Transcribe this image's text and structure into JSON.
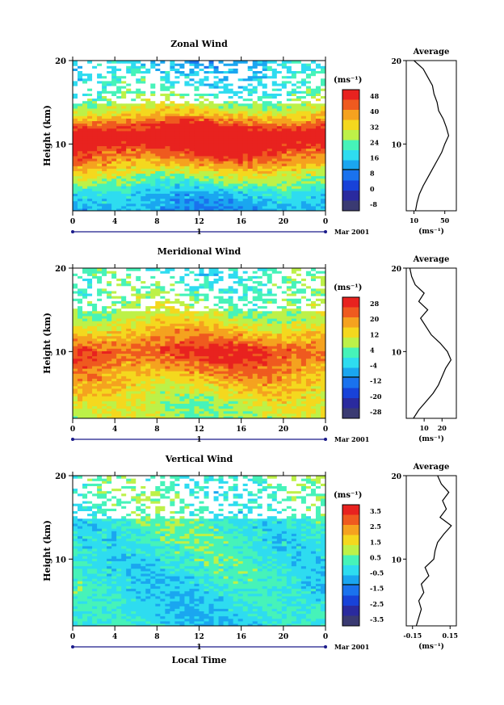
{
  "chart_data": [
    {
      "type": "heatmap",
      "title": "Zonal Wind",
      "ylabel": "Height (km)",
      "ylim": [
        2,
        20
      ],
      "x_ticks": [
        "0",
        "4",
        "8",
        "12",
        "16",
        "20",
        "0"
      ],
      "date_axis": {
        "label": "1",
        "trailer": "Mar 2001"
      },
      "colorbar": {
        "unit": "(ms⁻¹)",
        "ticks": [
          "48",
          "40",
          "32",
          "24",
          "16",
          "8",
          "0",
          "-8"
        ],
        "colors": [
          "#e8221f",
          "#ef5a1f",
          "#f5a21f",
          "#f4d81e",
          "#bdf148",
          "#46f3b9",
          "#2edcf0",
          "#1aa6f0",
          "#1a72ee",
          "#1842d8",
          "#2a2a9e",
          "#3a3a72"
        ]
      },
      "field_profile": [
        {
          "height": 2,
          "value": 12
        },
        {
          "height": 4,
          "value": 16
        },
        {
          "height": 6,
          "value": 26
        },
        {
          "height": 8,
          "value": 38
        },
        {
          "height": 10,
          "value": 48
        },
        {
          "height": 11,
          "value": 52
        },
        {
          "height": 12,
          "value": 45
        },
        {
          "height": 14,
          "value": 30
        },
        {
          "height": 16,
          "value": 22
        },
        {
          "height": 18,
          "value": 18
        },
        {
          "height": 20,
          "value": 15
        }
      ],
      "average": {
        "title": "Average",
        "xlabel": "(ms⁻¹)",
        "x_ticks": [
          "10",
          "50"
        ],
        "xlim": [
          0,
          65
        ],
        "ylim": [
          2,
          20
        ],
        "y_ticks": [
          "10",
          "20"
        ],
        "profile": [
          {
            "height": 2,
            "value": 12
          },
          {
            "height": 3,
            "value": 14
          },
          {
            "height": 4,
            "value": 17
          },
          {
            "height": 5,
            "value": 22
          },
          {
            "height": 6,
            "value": 28
          },
          {
            "height": 7,
            "value": 34
          },
          {
            "height": 8,
            "value": 40
          },
          {
            "height": 9,
            "value": 46
          },
          {
            "height": 10,
            "value": 50
          },
          {
            "height": 11,
            "value": 55
          },
          {
            "height": 12,
            "value": 52
          },
          {
            "height": 13,
            "value": 48
          },
          {
            "height": 14,
            "value": 42
          },
          {
            "height": 15,
            "value": 40
          },
          {
            "height": 16,
            "value": 36
          },
          {
            "height": 17,
            "value": 34
          },
          {
            "height": 18,
            "value": 28
          },
          {
            "height": 19,
            "value": 22
          },
          {
            "height": 20,
            "value": 10
          }
        ]
      }
    },
    {
      "type": "heatmap",
      "title": "Meridional Wind",
      "ylabel": "Height (km)",
      "ylim": [
        2,
        20
      ],
      "x_ticks": [
        "0",
        "4",
        "8",
        "12",
        "16",
        "20",
        "0"
      ],
      "date_axis": {
        "label": "1",
        "trailer": "Mar 2001"
      },
      "colorbar": {
        "unit": "(ms⁻¹)",
        "ticks": [
          "28",
          "20",
          "12",
          "4",
          "-4",
          "-12",
          "-20",
          "-28"
        ],
        "colors": [
          "#e8221f",
          "#ef5a1f",
          "#f5a21f",
          "#f4d81e",
          "#bdf148",
          "#46f3b9",
          "#2edcf0",
          "#1aa6f0",
          "#1a72ee",
          "#1842d8",
          "#2a2a9e",
          "#3a3a72"
        ]
      },
      "field_profile": [
        {
          "height": 2,
          "value": 6
        },
        {
          "height": 4,
          "value": 8
        },
        {
          "height": 6,
          "value": 12
        },
        {
          "height": 8,
          "value": 18
        },
        {
          "height": 10,
          "value": 24
        },
        {
          "height": 12,
          "value": 16
        },
        {
          "height": 14,
          "value": 8
        },
        {
          "height": 16,
          "value": 4
        },
        {
          "height": 18,
          "value": 2
        },
        {
          "height": 20,
          "value": 0
        }
      ],
      "average": {
        "title": "Average",
        "xlabel": "(ms⁻¹)",
        "x_ticks": [
          "10",
          "20"
        ],
        "xlim": [
          0,
          28
        ],
        "ylim": [
          2,
          20
        ],
        "y_ticks": [
          "10",
          "20"
        ],
        "profile": [
          {
            "height": 2,
            "value": 4
          },
          {
            "height": 3,
            "value": 7
          },
          {
            "height": 4,
            "value": 11
          },
          {
            "height": 5,
            "value": 15
          },
          {
            "height": 6,
            "value": 18
          },
          {
            "height": 7,
            "value": 20
          },
          {
            "height": 8,
            "value": 22
          },
          {
            "height": 9,
            "value": 25
          },
          {
            "height": 10,
            "value": 23
          },
          {
            "height": 11,
            "value": 19
          },
          {
            "height": 12,
            "value": 14
          },
          {
            "height": 13,
            "value": 11
          },
          {
            "height": 14,
            "value": 8
          },
          {
            "height": 15,
            "value": 12
          },
          {
            "height": 16,
            "value": 7
          },
          {
            "height": 17,
            "value": 10
          },
          {
            "height": 18,
            "value": 5
          },
          {
            "height": 19,
            "value": 3
          },
          {
            "height": 20,
            "value": 2
          }
        ]
      }
    },
    {
      "type": "heatmap",
      "title": "Vertical Wind",
      "ylabel": "Height (km)",
      "xlabel": "Local Time",
      "ylim": [
        2,
        20
      ],
      "x_ticks": [
        "0",
        "4",
        "8",
        "12",
        "16",
        "20",
        "0"
      ],
      "date_axis": {
        "label": "1",
        "trailer": "Mar 2001"
      },
      "colorbar": {
        "unit": "(ms⁻¹)",
        "ticks": [
          "3.5",
          "2.5",
          "1.5",
          "0.5",
          "-0.5",
          "-1.5",
          "-2.5",
          "-3.5"
        ],
        "colors": [
          "#e8221f",
          "#ef5a1f",
          "#f5a21f",
          "#f4d81e",
          "#bdf148",
          "#46f3b9",
          "#2edcf0",
          "#1aa6f0",
          "#1a72ee",
          "#1842d8",
          "#2a2a9e",
          "#3a3a72"
        ]
      },
      "field_profile": [
        {
          "height": 2,
          "value": -0.3
        },
        {
          "height": 6,
          "value": -0.2
        },
        {
          "height": 10,
          "value": 0.0
        },
        {
          "height": 14,
          "value": 0.1
        },
        {
          "height": 18,
          "value": 0.2
        },
        {
          "height": 20,
          "value": 0.1
        }
      ],
      "average": {
        "title": "Average",
        "xlabel": "(ms⁻¹)",
        "x_ticks": [
          "-0.15",
          "0.15"
        ],
        "xlim": [
          -0.2,
          0.2
        ],
        "ylim": [
          2,
          20
        ],
        "y_ticks": [
          "10",
          "20"
        ],
        "profile": [
          {
            "height": 2,
            "value": -0.12
          },
          {
            "height": 3,
            "value": -0.1
          },
          {
            "height": 4,
            "value": -0.08
          },
          {
            "height": 5,
            "value": -0.1
          },
          {
            "height": 6,
            "value": -0.06
          },
          {
            "height": 7,
            "value": -0.08
          },
          {
            "height": 8,
            "value": -0.02
          },
          {
            "height": 9,
            "value": -0.05
          },
          {
            "height": 10,
            "value": 0.02
          },
          {
            "height": 11,
            "value": 0.03
          },
          {
            "height": 12,
            "value": 0.05
          },
          {
            "height": 13,
            "value": 0.1
          },
          {
            "height": 14,
            "value": 0.16
          },
          {
            "height": 15,
            "value": 0.07
          },
          {
            "height": 16,
            "value": 0.12
          },
          {
            "height": 17,
            "value": 0.09
          },
          {
            "height": 18,
            "value": 0.14
          },
          {
            "height": 19,
            "value": 0.08
          },
          {
            "height": 20,
            "value": 0.05
          }
        ]
      }
    }
  ]
}
